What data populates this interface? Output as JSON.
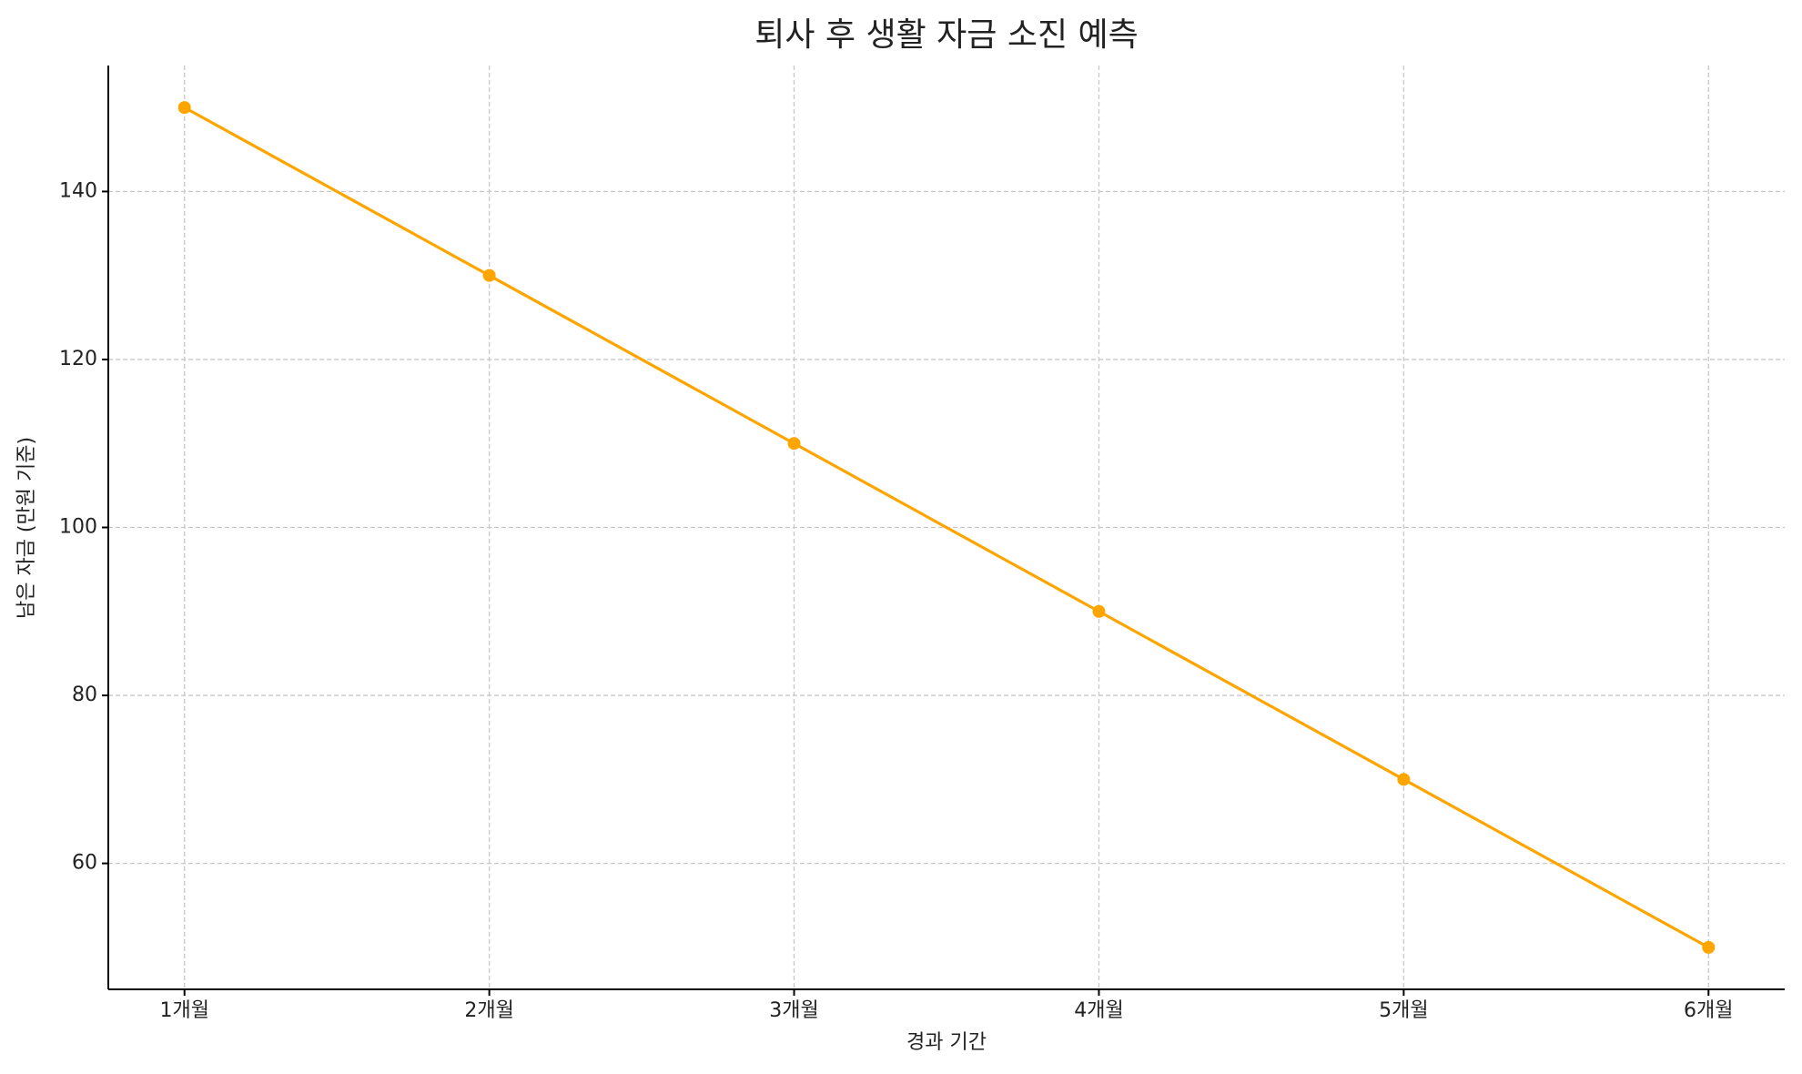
{
  "chart_data": {
    "type": "line",
    "title": "퇴사 후 생활 자금 소진 예측",
    "x_label": "경과 기간",
    "y_label": "남은 자금 (만원 기준)",
    "categories": [
      "1개월",
      "2개월",
      "3개월",
      "4개월",
      "5개월",
      "6개월"
    ],
    "series": [
      {
        "name": "남은 자금",
        "color": "#ffa500",
        "values": [
          150,
          130,
          110,
          90,
          70,
          50
        ]
      }
    ],
    "ylim": [
      45,
      155
    ],
    "yticks": [
      60,
      80,
      100,
      120,
      140
    ],
    "grid": true
  }
}
